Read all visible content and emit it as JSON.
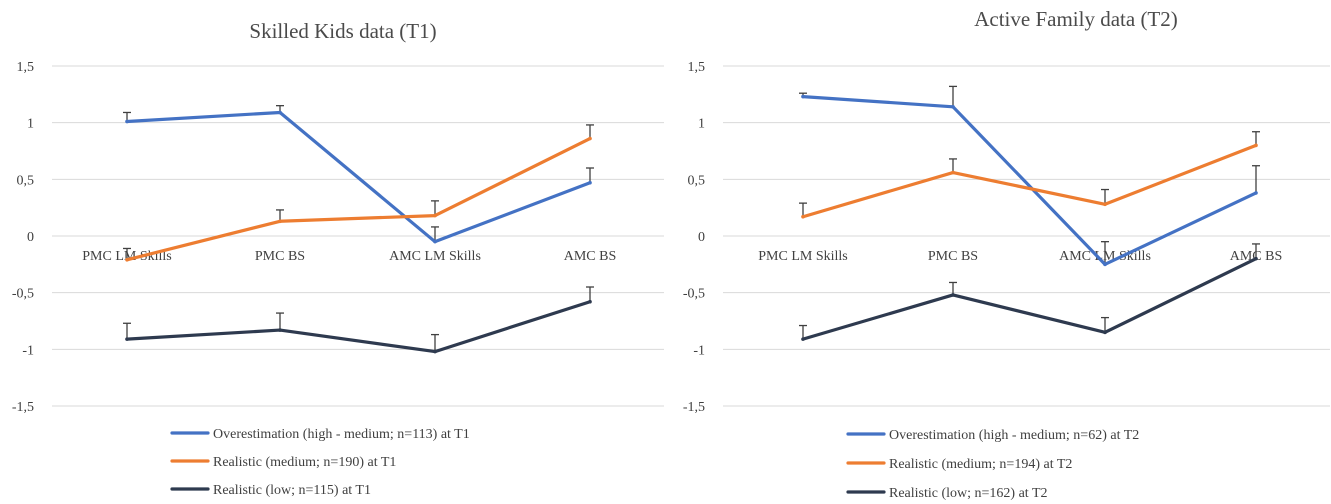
{
  "chart_data": [
    {
      "type": "line",
      "title": "Skilled Kids data (T1)",
      "categories": [
        "PMC LM Skills",
        "PMC BS",
        "AMC LM Skills",
        "AMC BS"
      ],
      "yticks": [
        "1,5",
        "1",
        "0,5",
        "0",
        "-0,5",
        "-1",
        "-1,5"
      ],
      "ylim": [
        -1.5,
        1.5
      ],
      "grid": true,
      "legend_position": "bottom",
      "series": [
        {
          "name": "Overestimation (high - medium; n=113) at T1",
          "color": "#4472c4",
          "values": [
            1.01,
            1.09,
            -0.05,
            0.47
          ],
          "err": [
            0.08,
            0.06,
            0.13,
            0.13
          ]
        },
        {
          "name": "Realistic (medium; n=190) at T1",
          "color": "#ed7d31",
          "values": [
            -0.21,
            0.13,
            0.18,
            0.86
          ],
          "err": [
            0.1,
            0.1,
            0.13,
            0.12
          ]
        },
        {
          "name": "Realistic (low; n=115) at T1",
          "color": "#2e3a4f",
          "values": [
            -0.91,
            -0.83,
            -1.02,
            -0.58
          ],
          "err": [
            0.14,
            0.15,
            0.15,
            0.13
          ]
        }
      ]
    },
    {
      "type": "line",
      "title": "Active Family data (T2)",
      "categories": [
        "PMC LM Skills",
        "PMC BS",
        "AMC LM Skills",
        "AMC BS"
      ],
      "yticks": [
        "1,5",
        "1",
        "0,5",
        "0",
        "-0,5",
        "-1",
        "-1,5"
      ],
      "ylim": [
        -1.5,
        1.5
      ],
      "grid": true,
      "legend_position": "bottom",
      "series": [
        {
          "name": "Overestimation (high - medium; n=62) at T2",
          "color": "#4472c4",
          "values": [
            1.23,
            1.14,
            -0.25,
            0.38
          ],
          "err": [
            0.03,
            0.18,
            0.2,
            0.24
          ]
        },
        {
          "name": "Realistic (medium; n=194) at T2",
          "color": "#ed7d31",
          "values": [
            0.17,
            0.56,
            0.28,
            0.8
          ],
          "err": [
            0.12,
            0.12,
            0.13,
            0.12
          ]
        },
        {
          "name": "Realistic (low; n=162) at T2",
          "color": "#2e3a4f",
          "values": [
            -0.91,
            -0.52,
            -0.85,
            -0.2
          ],
          "err": [
            0.12,
            0.11,
            0.13,
            0.13
          ]
        }
      ]
    }
  ]
}
